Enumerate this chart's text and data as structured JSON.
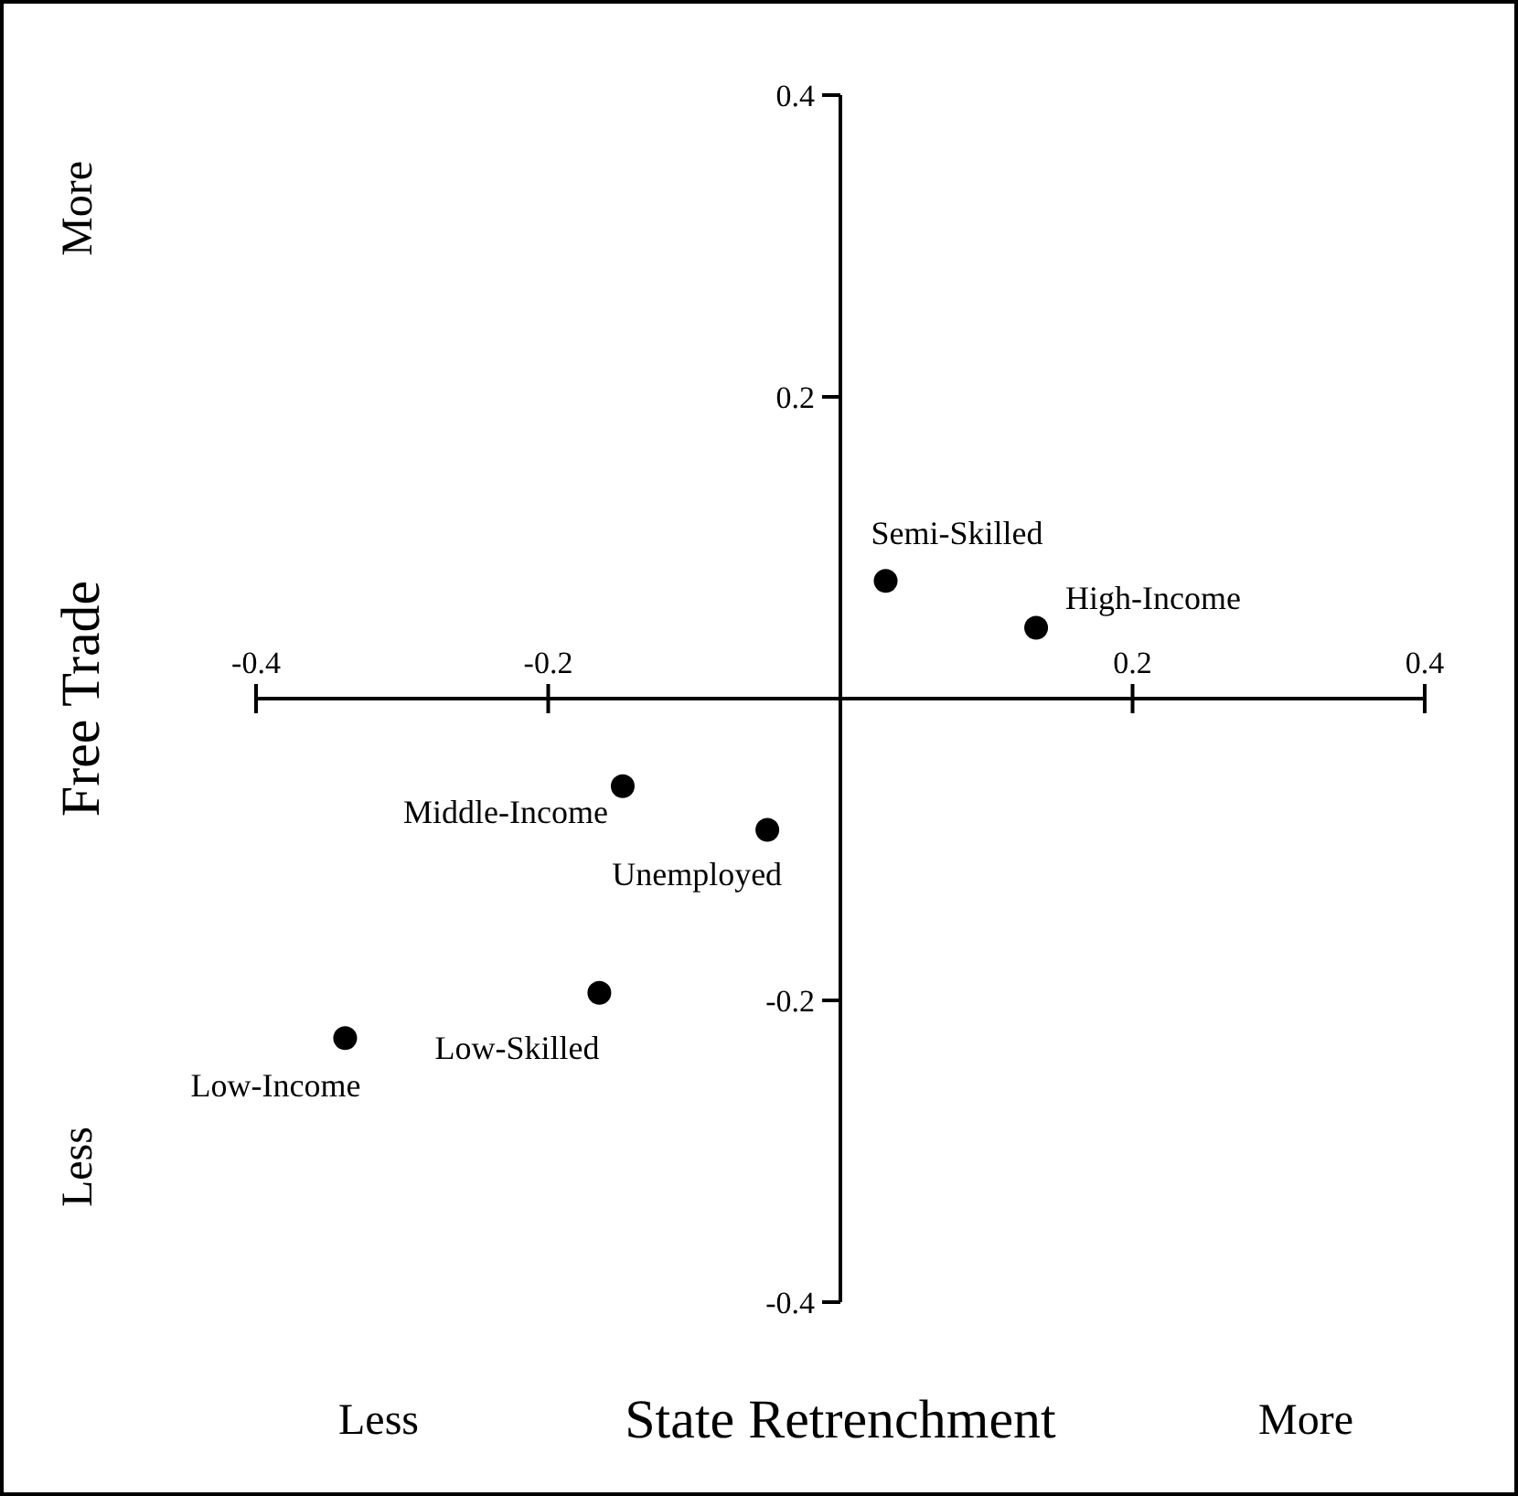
{
  "chart_data": {
    "type": "scatter",
    "xlabel": "State Retrenchment",
    "ylabel": "Free Trade",
    "x": [
      0.031,
      0.134,
      -0.149,
      -0.05,
      -0.165,
      -0.339
    ],
    "values": [
      0.078,
      0.047,
      -0.058,
      -0.087,
      -0.195,
      -0.225
    ],
    "color": "#000000",
    "marker": "circle",
    "grid": false,
    "legend": false,
    "xlim": [
      -0.4,
      0.4
    ],
    "ylim": [
      -0.4,
      0.4
    ],
    "xticks": [
      -0.4,
      -0.2,
      0.2,
      0.4
    ],
    "yticks": [
      -0.4,
      -0.2,
      0.2,
      0.4
    ],
    "annotations": [
      "Less",
      "More",
      "More",
      "Less",
      {
        "text": "Semi-Skilled",
        "x": 0.031,
        "y": 0.078
      },
      {
        "text": "High-Income",
        "x": 0.134,
        "y": 0.047
      },
      {
        "text": "Middle-Income",
        "x": -0.149,
        "y": -0.058
      },
      {
        "text": "Unemployed",
        "x": -0.05,
        "y": -0.087
      },
      {
        "text": "Low-Skilled",
        "x": -0.165,
        "y": -0.195
      },
      {
        "text": "Low-Income",
        "x": -0.339,
        "y": -0.225
      }
    ]
  }
}
